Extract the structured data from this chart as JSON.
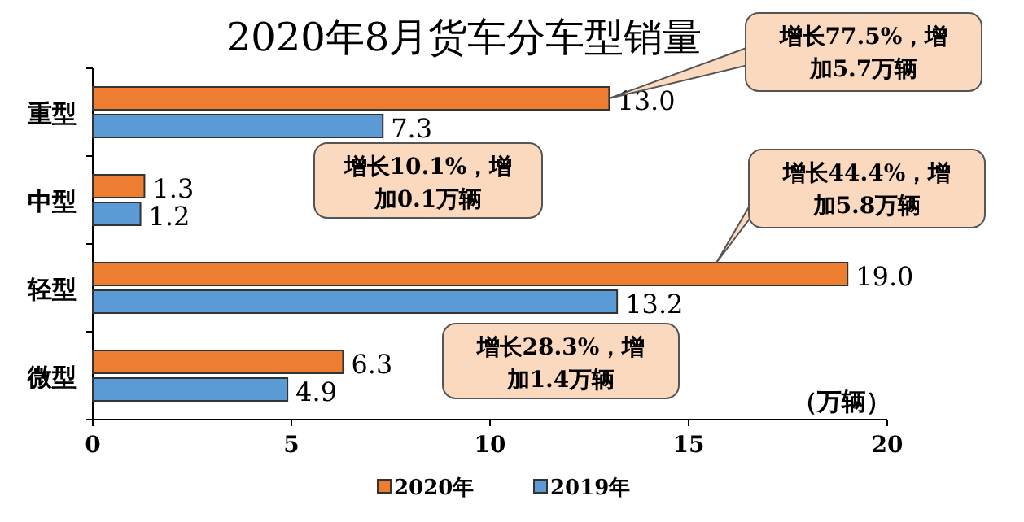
{
  "chart_data": {
    "type": "bar",
    "orientation": "horizontal",
    "title": "2020年8月货车分车型销量",
    "xlabel": "（万辆）",
    "categories": [
      "重型",
      "中型",
      "轻型",
      "微型"
    ],
    "series": [
      {
        "name": "2020年",
        "color": "#ed7d31",
        "values": [
          13.0,
          1.3,
          19.0,
          6.3
        ],
        "value_labels": [
          "13.0",
          "1.3",
          "19.0",
          "6.3"
        ]
      },
      {
        "name": "2019年",
        "color": "#5b9bd5",
        "values": [
          7.3,
          1.2,
          13.2,
          4.9
        ],
        "value_labels": [
          "7.3",
          "1.2",
          "13.2",
          "4.9"
        ]
      }
    ],
    "xlim": [
      0,
      20
    ],
    "xticks": [
      0,
      5,
      10,
      15,
      20
    ],
    "legend": "bottom",
    "annotations": [
      "增长77.5%，增加5.7万辆",
      "增长10.1%，增加0.1万辆",
      "增长44.4%，增加5.8万辆",
      "增长28.3%，增加1.4万辆"
    ]
  }
}
